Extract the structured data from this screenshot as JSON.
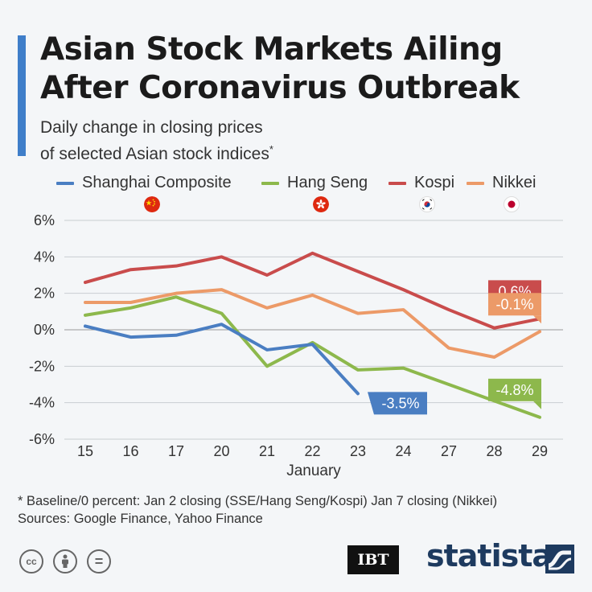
{
  "title": {
    "line1": "Asian Stock Markets Ailing",
    "line2": "After Coronavirus Outbreak"
  },
  "subtitle": {
    "line1": "Daily change in closing prices",
    "line2": "of selected Asian stock indices",
    "asterisk": "*"
  },
  "legend": [
    {
      "name": "Shanghai Composite",
      "color": "#4a7ec2",
      "flag": "china-flag-icon"
    },
    {
      "name": "Hang Seng",
      "color": "#8db84c",
      "flag": "hong-kong-flag-icon"
    },
    {
      "name": "Kospi",
      "color": "#c94c4c",
      "flag": "south-korea-flag-icon"
    },
    {
      "name": "Nikkei",
      "color": "#ec9a68",
      "flag": "japan-flag-icon"
    }
  ],
  "chart_data": {
    "type": "line",
    "title": "Asian Stock Markets Ailing After Coronavirus Outbreak",
    "xlabel": "January",
    "ylabel": "",
    "categories": [
      "15",
      "16",
      "17",
      "20",
      "21",
      "22",
      "23",
      "24",
      "27",
      "28",
      "29"
    ],
    "y_ticks": [
      6,
      4,
      2,
      0,
      -2,
      -4,
      -6
    ],
    "y_tick_labels": [
      "6%",
      "4%",
      "2%",
      "0%",
      "-2%",
      "-4%",
      "-6%"
    ],
    "ylim": [
      -6,
      6
    ],
    "grid": true,
    "series": [
      {
        "name": "Kospi",
        "color": "#c94c4c",
        "values": [
          2.6,
          3.3,
          3.5,
          4.0,
          3.0,
          4.2,
          3.2,
          2.2,
          1.1,
          0.1,
          0.6
        ],
        "end_label": "0.6%"
      },
      {
        "name": "Nikkei",
        "color": "#ec9a68",
        "values": [
          1.5,
          1.5,
          2.0,
          2.2,
          1.2,
          1.9,
          0.9,
          1.1,
          -1.0,
          -1.5,
          -0.1
        ],
        "end_label": "-0.1%"
      },
      {
        "name": "Hang Seng",
        "color": "#8db84c",
        "values": [
          0.8,
          1.2,
          1.8,
          0.9,
          -2.0,
          -0.7,
          -2.2,
          -2.1,
          -3.0,
          -3.9,
          -4.8
        ],
        "end_label": "-4.8%"
      },
      {
        "name": "Shanghai Composite",
        "color": "#4a7ec2",
        "values": [
          0.2,
          -0.4,
          -0.3,
          0.3,
          -1.1,
          -0.8,
          -3.5,
          null,
          null,
          null,
          null
        ],
        "end_label": "-3.5%"
      }
    ]
  },
  "footnote": {
    "line1": "* Baseline/0 percent: Jan 2 closing (SSE/Hang Seng/Kospi) Jan 7 closing (Nikkei)",
    "line2": "Sources: Google Finance, Yahoo Finance"
  },
  "footer": {
    "license_icons": [
      {
        "name": "cc-icon",
        "text": "cc"
      },
      {
        "name": "attribution-icon",
        "text": ""
      },
      {
        "name": "no-derivatives-icon",
        "text": "="
      }
    ],
    "partner": "IBT",
    "brand": "statista"
  }
}
